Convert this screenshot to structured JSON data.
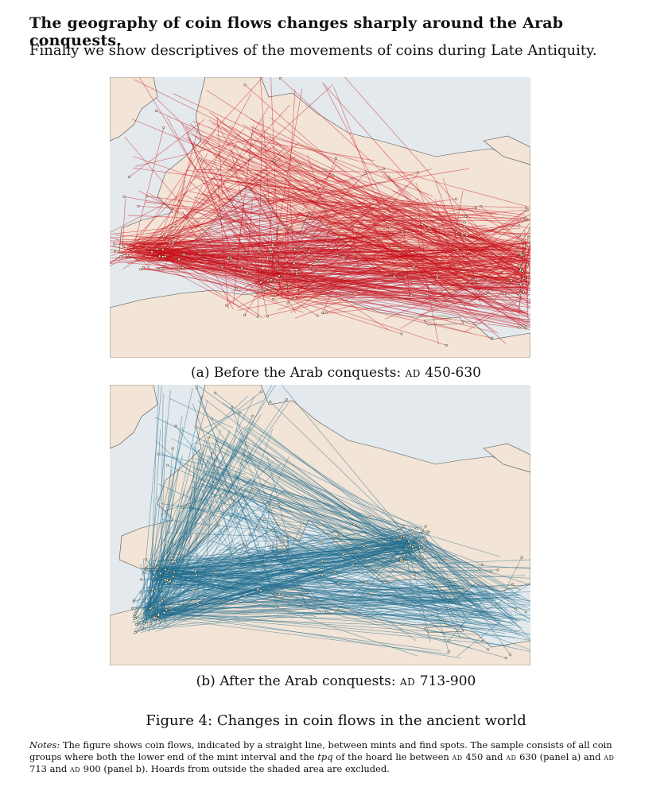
{
  "heading": "The geography of coin flows changes sharply around the Arab conquests.",
  "intro": "Finally we show descriptives of the movements of coins during Late Antiquity.",
  "panel_a": {
    "caption_prefix": "(a) Before the Arab conquests:",
    "caption_era": "ad",
    "caption_years": "450-630",
    "flow_color": "#c8101a"
  },
  "panel_b": {
    "caption_prefix": "(b) After the Arab conquests:",
    "caption_era": "ad",
    "caption_years": "713-900",
    "flow_color": "#1f6b8c"
  },
  "colors": {
    "sea": "#e3e9ec",
    "land": "#f2e4d6",
    "border": "#555555"
  },
  "figure_title": "Figure 4: Changes in coin flows in the ancient world",
  "notes": {
    "label": "Notes:",
    "p1": "The figure shows coin flows, indicated by a straight line, between mints and find spots. The sample consists of all coin groups where both the lower end of the mint interval and the",
    "tpq": "tpq",
    "p2": "of the hoard lie between",
    "era1": "ad",
    "y1": "450 and",
    "era2": "ad",
    "y2": "630 (panel a) and",
    "era3": "ad",
    "y3": "713 and",
    "era4": "ad",
    "y4": "900 (panel b). Hoards from outside the shaded area are excluded."
  }
}
